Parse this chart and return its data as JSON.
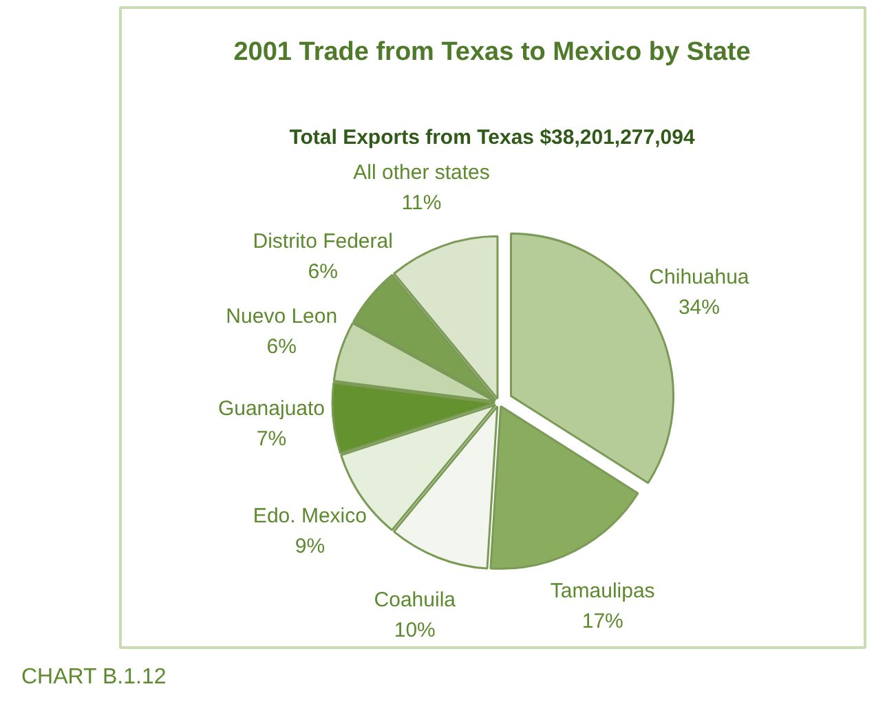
{
  "chart_data": {
    "type": "pie",
    "title": "2001 Trade from Texas to Mexico by State",
    "subtitle": "Total Exports from Texas $38,201,277,094",
    "categories": [
      "Chihuahua",
      "Tamaulipas",
      "Coahuila",
      "Edo. Mexico",
      "Guanajuato",
      "Nuevo Leon",
      "Distrito Federal",
      "All other states"
    ],
    "values": [
      34,
      17,
      10,
      9,
      7,
      6,
      6,
      11
    ],
    "value_labels": [
      "34%",
      "17%",
      "10%",
      "9%",
      "7%",
      "6%",
      "6%",
      "11%"
    ],
    "colors": [
      "#b5cc98",
      "#8aac5e",
      "#f3f6ee",
      "#e6eedc",
      "#64922e",
      "#c4d6ac",
      "#7ba050",
      "#dbe5cc"
    ],
    "annotations": [
      "CHART B.1.12"
    ]
  }
}
